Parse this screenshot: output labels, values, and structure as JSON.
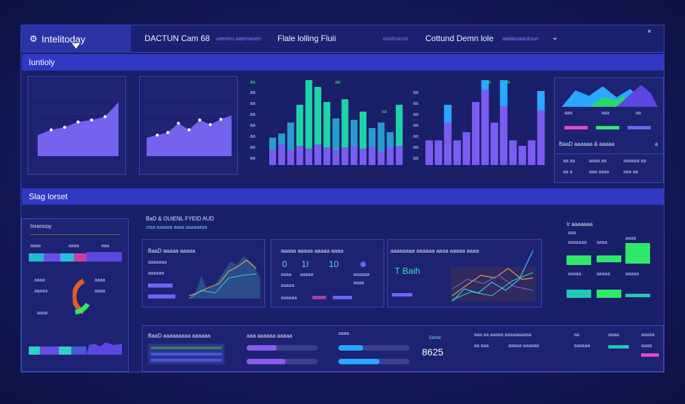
{
  "header": {
    "brand": "Intelitoday",
    "item1": "DACTUN Cam 68",
    "item1_sub": "ueeneu aasmaoen",
    "item2": "Flale lolling Fluii",
    "item3_sub": "oootcocon",
    "item3": "Cottund Demn lole",
    "item3_tag": "aaalauaautuun"
  },
  "section1": {
    "title": "Iuntioly"
  },
  "section2": {
    "title": "Slag lorset"
  },
  "colors": {
    "accent": "#6f62f5",
    "teal": "#20c9b4",
    "green": "#2ee86a",
    "cyan": "#2aa7ff",
    "magenta": "#e04cc8"
  },
  "area_chart_1": {
    "values": [
      32,
      40,
      44,
      52,
      55,
      60,
      82
    ]
  },
  "area_chart_2": {
    "values": [
      28,
      32,
      36,
      50,
      40,
      55,
      48,
      56,
      62
    ]
  },
  "stacked_bars": {
    "ticks": [
      "aa",
      "aa",
      "aa",
      "aa",
      "aa",
      "aa",
      "aa"
    ],
    "top_label_1": "aa",
    "top_label_2": "aa",
    "top_label_3": "aa",
    "bottom": [
      22,
      30,
      22,
      28,
      24,
      30,
      26,
      22,
      26,
      28,
      24,
      26,
      20,
      26,
      28
    ],
    "top": [
      18,
      16,
      40,
      60,
      104,
      84,
      66,
      46,
      70,
      38,
      54,
      28,
      42,
      22,
      60
    ]
  },
  "purple_bars": {
    "ticks": [
      "aa",
      "aa",
      "aa",
      "aa",
      "aa",
      "aa",
      "aa"
    ],
    "top_label_1": "aa",
    "top_label_2": "aa",
    "values": [
      36,
      36,
      62,
      36,
      48,
      92,
      110,
      62,
      86,
      36,
      28,
      36,
      80
    ],
    "cyan": [
      0,
      0,
      26,
      0,
      0,
      0,
      24,
      0,
      70,
      0,
      0,
      0,
      28
    ]
  },
  "mini_panel": {
    "row1": [
      "aaa",
      "aaa",
      "aa"
    ],
    "footer_title": "BaaD aaaaaa & aaaaa",
    "footer_right": "a",
    "stats": [
      "aa aa",
      "aaaa aa",
      "aaaaaa aa",
      "aa a",
      "aaa aaaa",
      "aaa aa"
    ]
  },
  "left_panel": {
    "title": "Inrennoy",
    "labels": [
      "aaaa",
      "aaaa",
      "aaa",
      "aaaa",
      "aaaa",
      "aaaaa",
      "aaaa",
      "aaaa"
    ]
  },
  "sub_header": {
    "line1": "BaD & OUtENL FYEID AUD",
    "line2": "ctoa aaaaaa aaaa aaaaaaaa"
  },
  "widget_a": {
    "title": "BaaD aaaaa aaaaa",
    "labels": [
      "aaaaaaa",
      "aaaaaa",
      "aaaa"
    ]
  },
  "widget_b": {
    "title": "aaaaa aaaaa aaaaa aaaa",
    "n1": "0",
    "n2": "1I",
    "n3": "10",
    "labels": [
      "aaaa",
      "aaaaa",
      "aaaaaa",
      "aaaaa",
      "aaaa",
      "aaaaaa"
    ]
  },
  "widget_c": {
    "title": "aaaaaaaa aaaaaa aaaa aaaaa aaaa",
    "big": "T Baih"
  },
  "right_stats": {
    "title": "Ir aaaaaaa",
    "labels": [
      "aaa",
      "aaaaaaa",
      "aaaa",
      "aaaa",
      "aaaaa",
      "aaaaa",
      "aaaaa"
    ]
  },
  "bottom_panel": {
    "title1": "BaaD aaaaaaaaa aaaaaa",
    "title2": "aaa aaaaaa aaaaa",
    "title3": "aaaa",
    "metric_label": "Sarac",
    "metric_value": "8625",
    "progress_1": 0.42,
    "progress_2": 0.55,
    "progress_3": 0.35,
    "progress_4": 0.58,
    "right_labels": [
      "aaa aa aaaaa aaaaaaaaaa",
      "aa aaa",
      "aaaaa aaaaaa",
      "aa",
      "aaaaaa",
      "aaaa",
      "aaaaa",
      "aaaa"
    ]
  }
}
